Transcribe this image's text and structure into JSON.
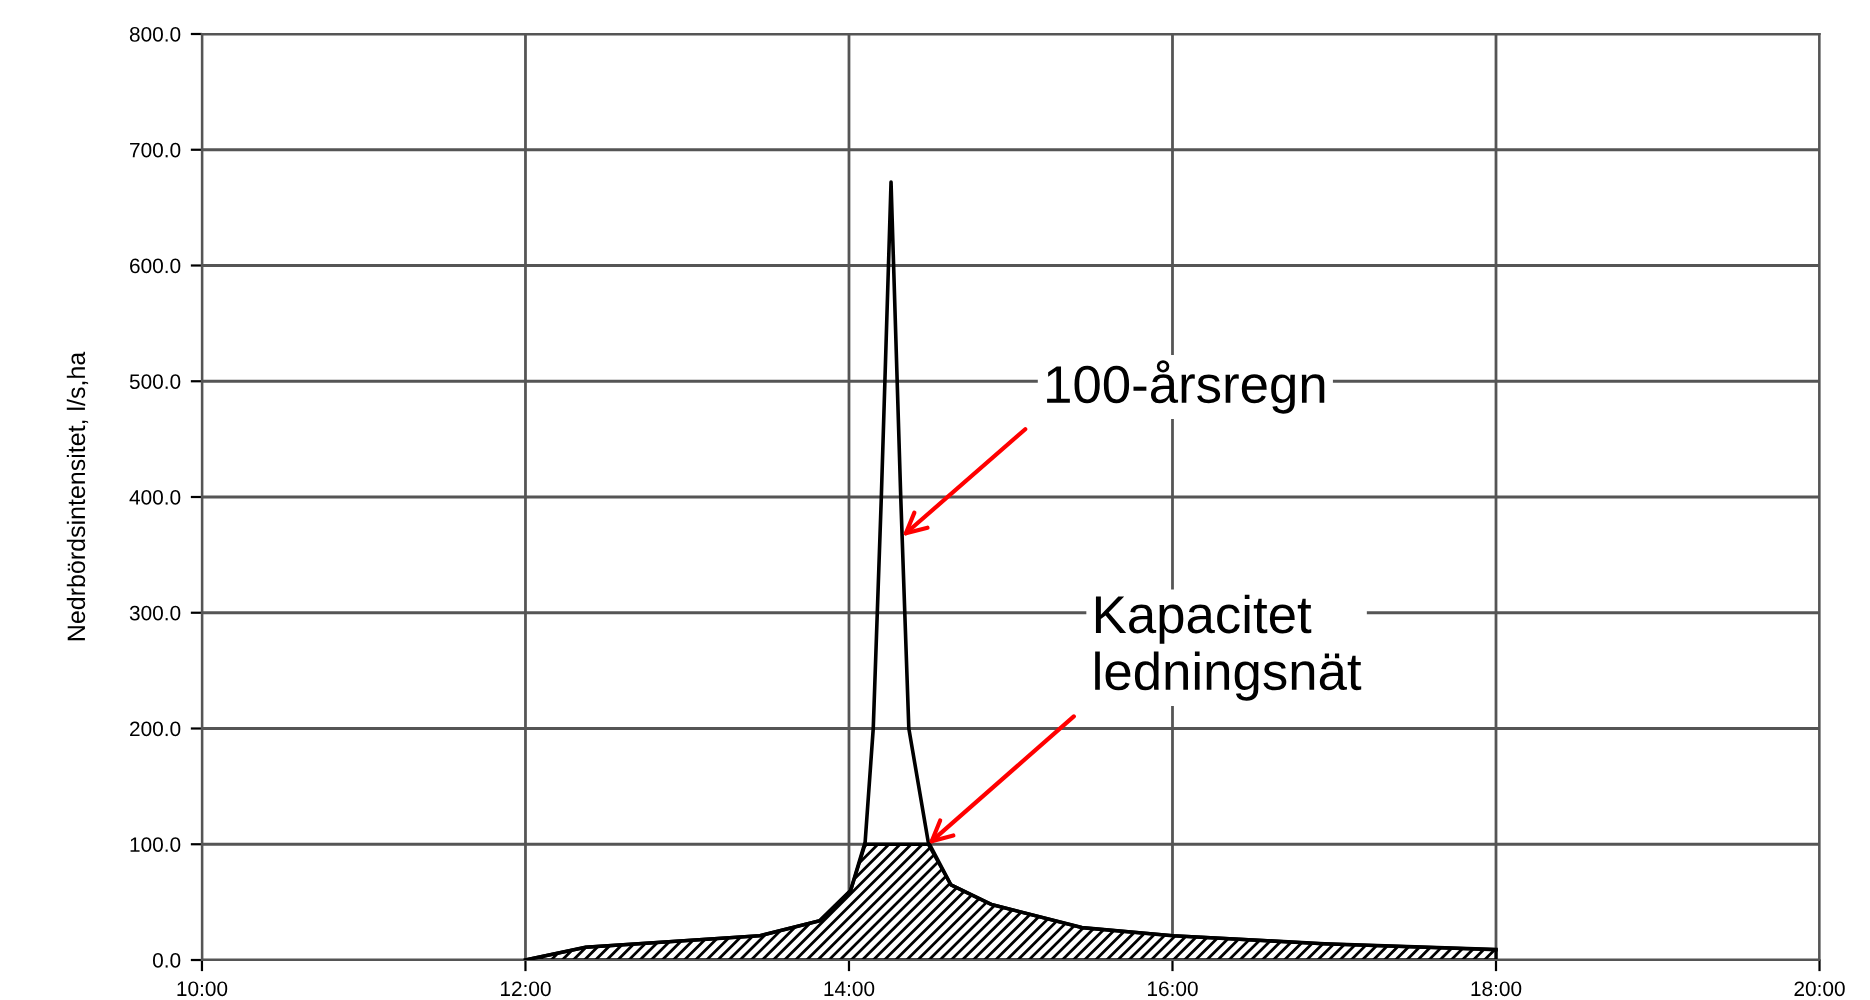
{
  "chart_data": {
    "type": "line",
    "ylabel": "Nedrbördsintensitet, l/s,ha",
    "series": [
      {
        "color": "#000000",
        "x": [
          12.0,
          12.37,
          13.45,
          13.82,
          14.01,
          14.1,
          14.15,
          14.2,
          14.26,
          14.32,
          14.37,
          14.49,
          14.63,
          14.88,
          15.44,
          16.0,
          16.94,
          18.0
        ],
        "values": [
          0,
          11,
          21,
          34,
          60,
          102,
          200,
          400,
          672,
          400,
          200,
          102,
          65,
          48,
          28,
          21,
          14,
          9
        ]
      },
      {
        "type": "area",
        "color": "#000000",
        "x": [
          12.0,
          12.37,
          13.45,
          13.82,
          14.01,
          14.1,
          14.49,
          14.63,
          14.88,
          15.44,
          16.0,
          16.94,
          18.0
        ],
        "values": [
          0,
          11,
          21,
          34,
          60,
          100,
          100,
          65,
          48,
          28,
          21,
          14,
          9
        ]
      }
    ],
    "annotations": [
      {
        "text": "100-årsregn",
        "x": 14.33,
        "y": 366
      },
      {
        "text": "Kapacitet\nledningsnät",
        "x": 14.49,
        "y": 100
      }
    ],
    "xlim": [
      10,
      20
    ],
    "xticks": [
      {
        "value": 10,
        "label": "10:00"
      },
      {
        "value": 12,
        "label": "12:00"
      },
      {
        "value": 14,
        "label": "14:00"
      },
      {
        "value": 16,
        "label": "16:00"
      },
      {
        "value": 18,
        "label": "18:00"
      },
      {
        "value": 20,
        "label": "20:00"
      }
    ],
    "ylim": [
      0,
      800
    ],
    "yticks": [
      {
        "value": 0,
        "label": "0.0"
      },
      {
        "value": 100,
        "label": "100.0"
      },
      {
        "value": 200,
        "label": "200.0"
      },
      {
        "value": 300,
        "label": "300.0"
      },
      {
        "value": 400,
        "label": "400.0"
      },
      {
        "value": 500,
        "label": "500.0"
      },
      {
        "value": 600,
        "label": "600.0"
      },
      {
        "value": 700,
        "label": "700.0"
      },
      {
        "value": 800,
        "label": "800.0"
      }
    ],
    "grid": true,
    "legend": false
  }
}
